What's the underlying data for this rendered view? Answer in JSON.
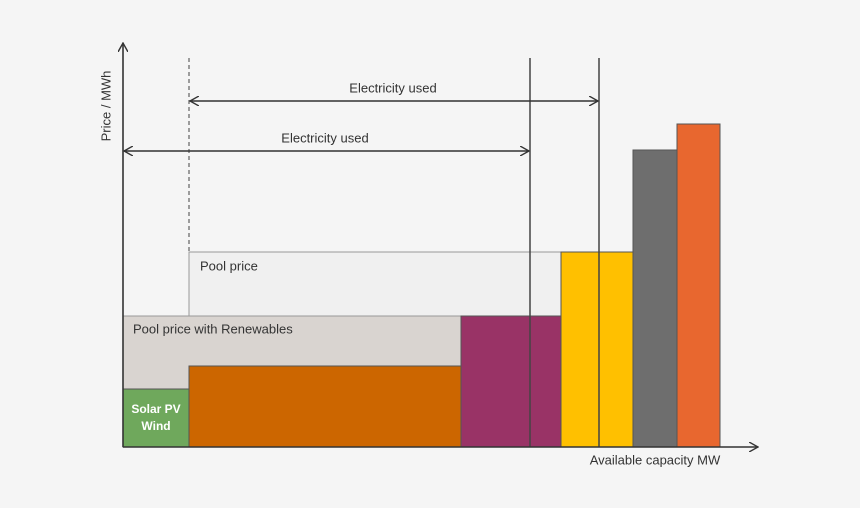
{
  "axes": {
    "y_label": "Price / MWh",
    "x_label": "Available capacity MW"
  },
  "arrows": [
    {
      "label": "Electricity used"
    },
    {
      "label": "Electricity used"
    }
  ],
  "regions": {
    "pool_price": "Pool price",
    "pool_price_renewables": "Pool price with Renewables"
  },
  "blocks": {
    "renewables": [
      "Solar PV",
      "Wind"
    ]
  }
}
